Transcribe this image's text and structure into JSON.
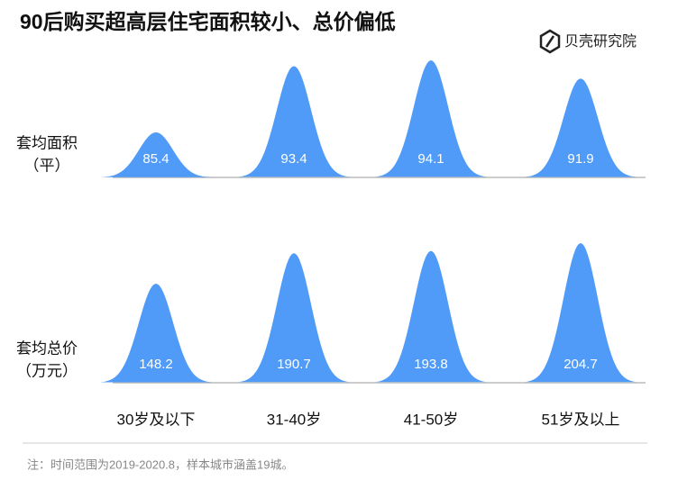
{
  "title": "90后购买超高层住宅面积较小、总价偏低",
  "brand": "贝壳研究院",
  "note": "注：时间范围为2019-2020.8，样本城市涵盖19城。",
  "chart_data": {
    "type": "bell",
    "categories": [
      "30岁及以下",
      "31-40岁",
      "41-50岁",
      "51岁及以上"
    ],
    "series": [
      {
        "name": "套均面积",
        "unit": "（平）",
        "color": "#4f9bf7",
        "values": [
          85.4,
          93.4,
          94.1,
          91.9
        ]
      },
      {
        "name": "套均总价",
        "unit": "（万元）",
        "color": "#4f9bf7",
        "values": [
          148.2,
          190.7,
          193.8,
          204.7
        ]
      }
    ]
  }
}
